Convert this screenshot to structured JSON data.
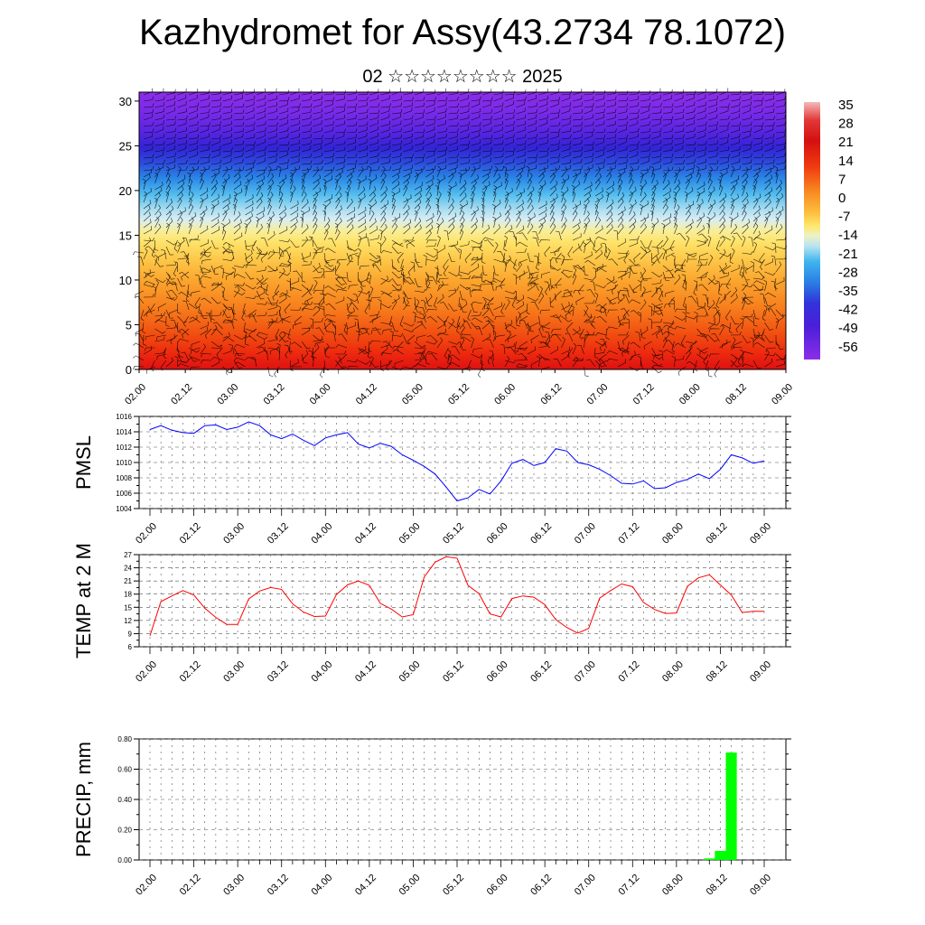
{
  "title": "Kazhydromet for Assy(43.2734 78.1072)",
  "subtitle": "02 ☆☆☆☆☆☆☆☆ 2025",
  "colors": {
    "pmsl_line": "#0000ff",
    "temp_line": "#ff0000",
    "precip_bar": "#00ff00"
  },
  "chart_data": [
    {
      "type": "heatmap",
      "yticks": [
        "0",
        "5",
        "10",
        "15",
        "20",
        "25",
        "30"
      ],
      "ylim": [
        0,
        31
      ],
      "x_tick_labels": [
        "02.00",
        "02.12",
        "03.00",
        "03.12",
        "04.00",
        "04.12",
        "05.00",
        "05.12",
        "06.00",
        "06.12",
        "07.00",
        "07.12",
        "08.00",
        "08.12",
        "09.00"
      ],
      "colorbar_labels": [
        "35",
        "28",
        "21",
        "14",
        "7",
        "0",
        "-7",
        "-14",
        "-21",
        "-28",
        "-35",
        "-42",
        "-49",
        "-56"
      ],
      "overlay": "wind-barbs",
      "description_levels_note": "temperature by height: warm near surface, cold near 25"
    },
    {
      "type": "line",
      "ylabel": "PMSL",
      "ylim": [
        1004,
        1016
      ],
      "yticks": [
        "1004",
        "1006",
        "1008",
        "1010",
        "1012",
        "1014",
        "1016"
      ],
      "x_tick_labels": [
        "02.00",
        "02.12",
        "03.00",
        "03.12",
        "04.00",
        "04.12",
        "05.00",
        "05.12",
        "06.00",
        "06.12",
        "07.00",
        "07.12",
        "08.00",
        "08.12",
        "09.00"
      ],
      "x": [
        0,
        3,
        6,
        9,
        12,
        15,
        18,
        21,
        24,
        27,
        30,
        33,
        36,
        39,
        42,
        45,
        48,
        51,
        54,
        57,
        60,
        63,
        66,
        69,
        72,
        75,
        78,
        81,
        84,
        87,
        90,
        93,
        96,
        99,
        102,
        105,
        108,
        111,
        114,
        117,
        120,
        123,
        126,
        129,
        132,
        135,
        138,
        141,
        144,
        147,
        150,
        153,
        156,
        159,
        162,
        165,
        168
      ],
      "values": [
        1014.3,
        1014.8,
        1014.2,
        1013.9,
        1013.8,
        1014.8,
        1014.9,
        1014.3,
        1014.6,
        1015.3,
        1014.8,
        1013.6,
        1013.1,
        1013.7,
        1012.9,
        1012.2,
        1013.2,
        1013.6,
        1013.9,
        1012.4,
        1011.9,
        1012.5,
        1012.1,
        1011.0,
        1010.3,
        1009.5,
        1008.5,
        1006.8,
        1005.0,
        1005.4,
        1006.5,
        1005.9,
        1007.6,
        1009.9,
        1010.4,
        1009.6,
        1010.0,
        1011.8,
        1011.5,
        1010.0,
        1009.7,
        1009.1,
        1008.3,
        1007.3,
        1007.2,
        1007.6,
        1006.6,
        1006.7,
        1007.4,
        1007.8,
        1008.5,
        1007.9,
        1009.1,
        1011.0,
        1010.6,
        1009.9,
        1010.2
      ]
    },
    {
      "type": "line",
      "ylabel": "TEMP at 2 M",
      "ylim": [
        6,
        27
      ],
      "yticks": [
        "6",
        "9",
        "12",
        "15",
        "18",
        "21",
        "24",
        "27"
      ],
      "x_tick_labels": [
        "02.00",
        "02.12",
        "03.00",
        "03.12",
        "04.00",
        "04.12",
        "05.00",
        "05.12",
        "06.00",
        "06.12",
        "07.00",
        "07.12",
        "08.00",
        "08.12",
        "09.00"
      ],
      "x": [
        0,
        3,
        6,
        9,
        12,
        15,
        18,
        21,
        24,
        27,
        30,
        33,
        36,
        39,
        42,
        45,
        48,
        51,
        54,
        57,
        60,
        63,
        66,
        69,
        72,
        75,
        78,
        81,
        84,
        87,
        90,
        93,
        96,
        99,
        102,
        105,
        108,
        111,
        114,
        117,
        120,
        123,
        126,
        129,
        132,
        135,
        138,
        141,
        144,
        147,
        150,
        153,
        156,
        159,
        162,
        165,
        168
      ],
      "values": [
        8.5,
        16.3,
        17.6,
        18.8,
        17.8,
        14.8,
        12.7,
        11.1,
        11.1,
        16.9,
        18.7,
        19.5,
        19.1,
        15.8,
        13.9,
        12.9,
        13.0,
        17.9,
        20.1,
        21.0,
        20.0,
        15.9,
        14.6,
        12.8,
        13.3,
        21.9,
        25.3,
        26.5,
        26.2,
        20.0,
        18.1,
        13.5,
        12.8,
        17.0,
        17.6,
        17.3,
        15.6,
        12.2,
        10.4,
        9.1,
        10.2,
        17.1,
        18.8,
        20.3,
        19.7,
        16.1,
        14.5,
        13.6,
        13.7,
        19.8,
        21.7,
        22.4,
        20.1,
        17.8,
        13.8,
        14.1,
        14.1
      ]
    },
    {
      "type": "bar",
      "ylabel": "PRECIP, mm",
      "ylim": [
        0,
        0.8
      ],
      "yticks": [
        "0.00",
        "0.20",
        "0.40",
        "0.60",
        "0.80"
      ],
      "x_tick_labels": [
        "02.00",
        "02.12",
        "03.00",
        "03.12",
        "04.00",
        "04.12",
        "05.00",
        "05.12",
        "06.00",
        "06.12",
        "07.00",
        "07.12",
        "08.00",
        "08.12",
        "09.00"
      ],
      "bars": [
        {
          "x": 153,
          "value": 0.01
        },
        {
          "x": 156,
          "value": 0.06
        },
        {
          "x": 159,
          "value": 0.71
        }
      ]
    }
  ]
}
